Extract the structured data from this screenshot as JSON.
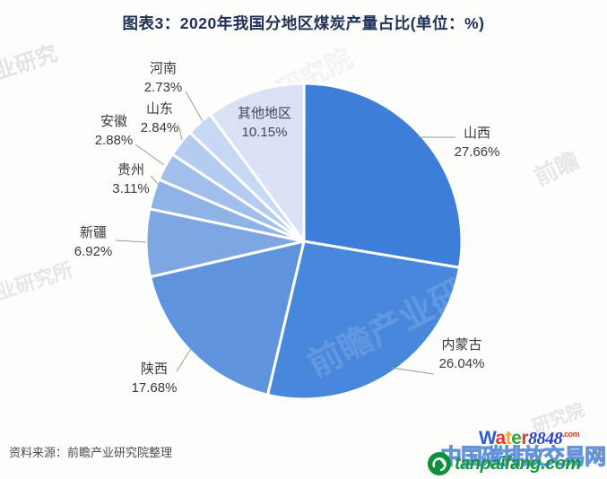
{
  "title": "图表3：2020年我国分地区煤炭产量占比(单位：%)",
  "source": "资料来源：前瞻产业研究院整理",
  "chart_data": {
    "type": "pie",
    "title": "2020年我国分地区煤炭产量占比",
    "unit": "%",
    "start_at_top": true,
    "direction": "clockwise",
    "legend": "none (direct labels with leader lines)",
    "slices": [
      {
        "label": "山西",
        "value": 27.66,
        "display": "27.66%",
        "color": "#3d7edb"
      },
      {
        "label": "内蒙古",
        "value": 26.04,
        "display": "26.04%",
        "color": "#4787dc"
      },
      {
        "label": "陕西",
        "value": 17.68,
        "display": "17.68%",
        "color": "#5f93de"
      },
      {
        "label": "新疆",
        "value": 6.92,
        "display": "6.92%",
        "color": "#7da6e3"
      },
      {
        "label": "贵州",
        "value": 3.11,
        "display": "3.11%",
        "color": "#8fb2e7"
      },
      {
        "label": "安徽",
        "value": 2.88,
        "display": "2.88%",
        "color": "#a1bfea"
      },
      {
        "label": "山东",
        "value": 2.84,
        "display": "2.84%",
        "color": "#b4ccef"
      },
      {
        "label": "河南",
        "value": 2.73,
        "display": "2.73%",
        "color": "#c6d8f3"
      },
      {
        "label": "其他地区",
        "value": 10.15,
        "display": "10.15%",
        "color": "#d9e2f4"
      }
    ]
  },
  "watermarks": {
    "brand_text": "前瞻产业研究院",
    "fragments": {
      "top_left": "业研究",
      "right_edge": "前瞻",
      "pie_overlay": "前瞻产业研究院",
      "pie_upper": "产业研究院",
      "left_edge": "业研究所",
      "bottom_right": "研究院",
      "edge_letter": "P"
    },
    "water8848": {
      "word": "Water",
      "letter_colors": [
        "#2f5fc9",
        "#e03a2e",
        "#f2a71b",
        "#33a03a",
        "#e03a2e"
      ],
      "number": "8848",
      "number_color": "#2b43c8",
      "dotcom": ".com",
      "dotcom_color": "#e03a2e"
    },
    "tanpaifang": {
      "text": "tanpaifang.com",
      "color": "#12993e",
      "outlined_text": "中国碳排放交易网"
    }
  }
}
